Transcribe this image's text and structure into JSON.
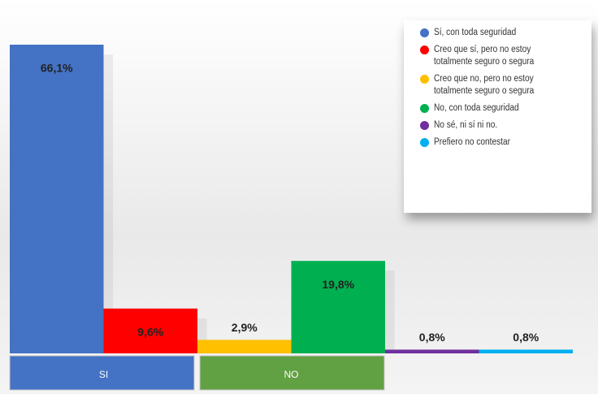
{
  "chart_data": {
    "type": "bar",
    "categories": [
      "Sí, con toda seguridad",
      "Creo que sí, pero no estoy\ntotalmente seguro o segura",
      "Creo que no, pero no estoy\ntotalmente seguro o segura",
      "No, con toda seguridad",
      "No sé, ni sí ni no.",
      "Prefiero no contestar"
    ],
    "values": [
      66.1,
      9.6,
      2.9,
      19.8,
      0.8,
      0.8
    ],
    "value_labels": [
      "66,1%",
      "9,6%",
      "2,9%",
      "19,8%",
      "0,8%",
      "0,8%"
    ],
    "colors": [
      "#4472c4",
      "#ff0000",
      "#ffc000",
      "#00b050",
      "#7030a0",
      "#00b0f0"
    ],
    "group_labels": [
      "SI",
      "NO"
    ],
    "group_colors": [
      "#4472c4",
      "#62a044"
    ]
  }
}
